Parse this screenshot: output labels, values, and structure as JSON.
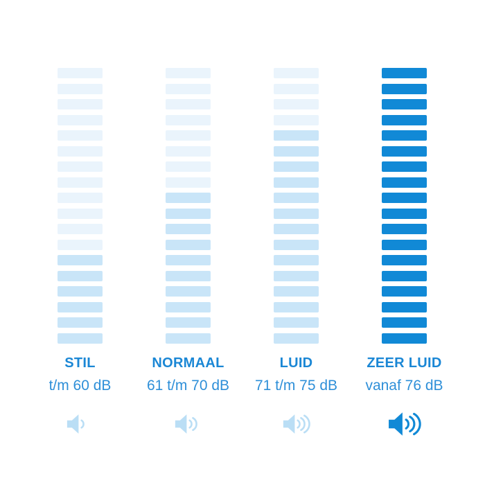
{
  "colors": {
    "background": "#ffffff",
    "label_text": "#1b87d5",
    "range_text": "#2e8fd8",
    "bar_empty": "#eaf4fc",
    "bar_filled_light": "#c9e5f8",
    "bar_filled_strong": "#1189d6",
    "icon_light": "#badef5",
    "icon_strong": "#1189d6"
  },
  "chart_data": {
    "type": "bar",
    "categories": [
      "STIL",
      "NORMAAL",
      "LUID",
      "ZEER LUID"
    ],
    "category_sublabels": [
      "t/m 60 dB",
      "61 t/m 70 dB",
      "71 t/m 75 dB",
      "vanaf 76 dB"
    ],
    "segments_per_column": 18,
    "series": [
      {
        "name": "filled_segments",
        "values": [
          6,
          10,
          14,
          18
        ]
      },
      {
        "name": "unfilled_segments",
        "values": [
          12,
          8,
          4,
          0
        ]
      }
    ],
    "sound_wave_counts": [
      1,
      2,
      3,
      3
    ],
    "unit": "dB",
    "ylim": [
      0,
      18
    ],
    "grid": false,
    "legend_position": "none"
  },
  "columns": [
    {
      "label": "STIL",
      "range": "t/m 60 dB",
      "bars_total": 18,
      "bars_filled": 6,
      "empty_color": "#eaf4fc",
      "filled_color": "#c9e5f8",
      "icon": "speaker-volume-1-icon",
      "waves": 1,
      "icon_color": "#badef5",
      "emphasis": false
    },
    {
      "label": "NORMAAL",
      "range": "61 t/m 70 dB",
      "bars_total": 18,
      "bars_filled": 10,
      "empty_color": "#eaf4fc",
      "filled_color": "#c9e5f8",
      "icon": "speaker-volume-2-icon",
      "waves": 2,
      "icon_color": "#badef5",
      "emphasis": false
    },
    {
      "label": "LUID",
      "range": "71 t/m 75 dB",
      "bars_total": 18,
      "bars_filled": 14,
      "empty_color": "#eaf4fc",
      "filled_color": "#c9e5f8",
      "icon": "speaker-volume-3-icon",
      "waves": 3,
      "icon_color": "#badef5",
      "emphasis": false
    },
    {
      "label": "ZEER LUID",
      "range": "vanaf 76 dB",
      "bars_total": 18,
      "bars_filled": 18,
      "empty_color": "#1189d6",
      "filled_color": "#1189d6",
      "icon": "speaker-volume-loud-icon",
      "waves": 3,
      "icon_color": "#1189d6",
      "emphasis": true
    }
  ]
}
